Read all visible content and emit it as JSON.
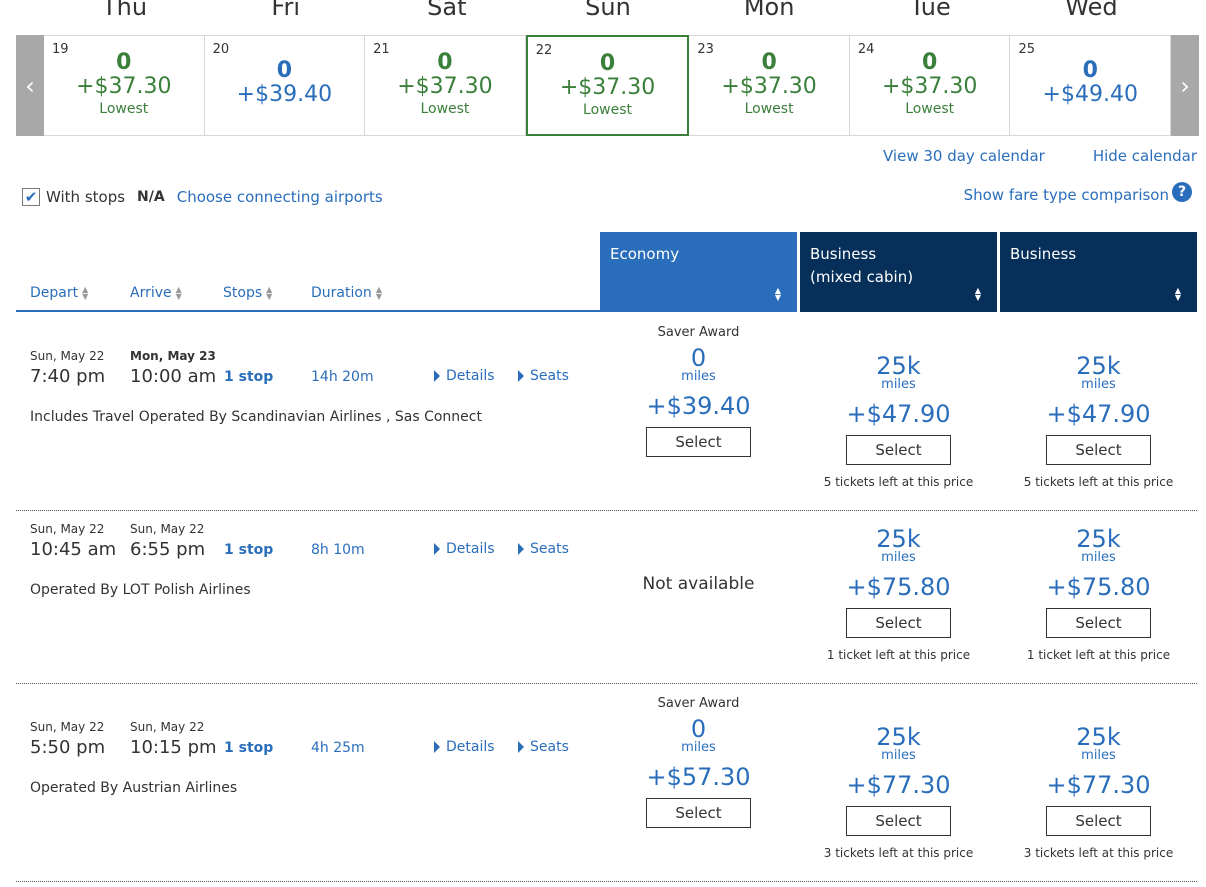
{
  "calendar": {
    "days": [
      {
        "dow": "Thu",
        "num": "19",
        "miles": "0",
        "price": "+$37.30",
        "lowest": "Lowest",
        "is_lowest": true,
        "selected": false
      },
      {
        "dow": "Fri",
        "num": "20",
        "miles": "0",
        "price": "+$39.40",
        "lowest": "",
        "is_lowest": false,
        "selected": false
      },
      {
        "dow": "Sat",
        "num": "21",
        "miles": "0",
        "price": "+$37.30",
        "lowest": "Lowest",
        "is_lowest": true,
        "selected": false
      },
      {
        "dow": "Sun",
        "num": "22",
        "miles": "0",
        "price": "+$37.30",
        "lowest": "Lowest",
        "is_lowest": true,
        "selected": true
      },
      {
        "dow": "Mon",
        "num": "23",
        "miles": "0",
        "price": "+$37.30",
        "lowest": "Lowest",
        "is_lowest": true,
        "selected": false
      },
      {
        "dow": "Tue",
        "num": "24",
        "miles": "0",
        "price": "+$37.30",
        "lowest": "Lowest",
        "is_lowest": true,
        "selected": false
      },
      {
        "dow": "Wed",
        "num": "25",
        "miles": "0",
        "price": "+$49.40",
        "lowest": "",
        "is_lowest": false,
        "selected": false
      }
    ],
    "prev_arrow": "‹",
    "next_arrow": "›",
    "view_30": "View 30 day calendar",
    "hide": "Hide calendar"
  },
  "filters": {
    "with_stops_checked": true,
    "with_stops": "With stops",
    "na": "N/A",
    "connecting": "Choose connecting airports",
    "fare_comparison": "Show fare type comparison",
    "help": "?"
  },
  "sort": {
    "depart": "Depart",
    "arrive": "Arrive",
    "stops": "Stops",
    "duration": "Duration"
  },
  "cabins": {
    "economy": "Economy",
    "business_mixed_1": "Business",
    "business_mixed_2": "(mixed cabin)",
    "business": "Business"
  },
  "flights": [
    {
      "dep_date": "Sun, May 22",
      "dep_time": "7:40 pm",
      "arr_date": "Mon, May 23",
      "arr_time": "10:00 am",
      "stops": "1 stop",
      "duration": "14h 20m",
      "details": "Details",
      "seats": "Seats",
      "operated": "Includes Travel Operated By Scandinavian Airlines , Sas Connect",
      "economy": {
        "saver": "Saver Award",
        "miles": "0",
        "miles_label": "miles",
        "price": "+$39.40",
        "select": "Select",
        "left": ""
      },
      "business_mixed": {
        "miles": "25k",
        "miles_label": "miles",
        "price": "+$47.90",
        "select": "Select",
        "left": "5 tickets left at this price"
      },
      "business": {
        "miles": "25k",
        "miles_label": "miles",
        "price": "+$47.90",
        "select": "Select",
        "left": "5 tickets left at this price"
      }
    },
    {
      "dep_date": "Sun, May 22",
      "dep_time": "10:45 am",
      "arr_date": "Sun, May 22",
      "arr_time": "6:55 pm",
      "stops": "1 stop",
      "duration": "8h 10m",
      "details": "Details",
      "seats": "Seats",
      "operated": "Operated By LOT Polish Airlines",
      "economy": {
        "not_available": "Not available"
      },
      "business_mixed": {
        "miles": "25k",
        "miles_label": "miles",
        "price": "+$75.80",
        "select": "Select",
        "left": "1 ticket left at this price"
      },
      "business": {
        "miles": "25k",
        "miles_label": "miles",
        "price": "+$75.80",
        "select": "Select",
        "left": "1 ticket left at this price"
      }
    },
    {
      "dep_date": "Sun, May 22",
      "dep_time": "5:50 pm",
      "arr_date": "Sun, May 22",
      "arr_time": "10:15 pm",
      "stops": "1 stop",
      "duration": "4h 25m",
      "details": "Details",
      "seats": "Seats",
      "operated": "Operated By Austrian Airlines",
      "economy": {
        "saver": "Saver Award",
        "miles": "0",
        "miles_label": "miles",
        "price": "+$57.30",
        "select": "Select",
        "left": ""
      },
      "business_mixed": {
        "miles": "25k",
        "miles_label": "miles",
        "price": "+$77.30",
        "select": "Select",
        "left": "3 tickets left at this price"
      },
      "business": {
        "miles": "25k",
        "miles_label": "miles",
        "price": "+$77.30",
        "select": "Select",
        "left": "3 tickets left at this price"
      }
    }
  ]
}
